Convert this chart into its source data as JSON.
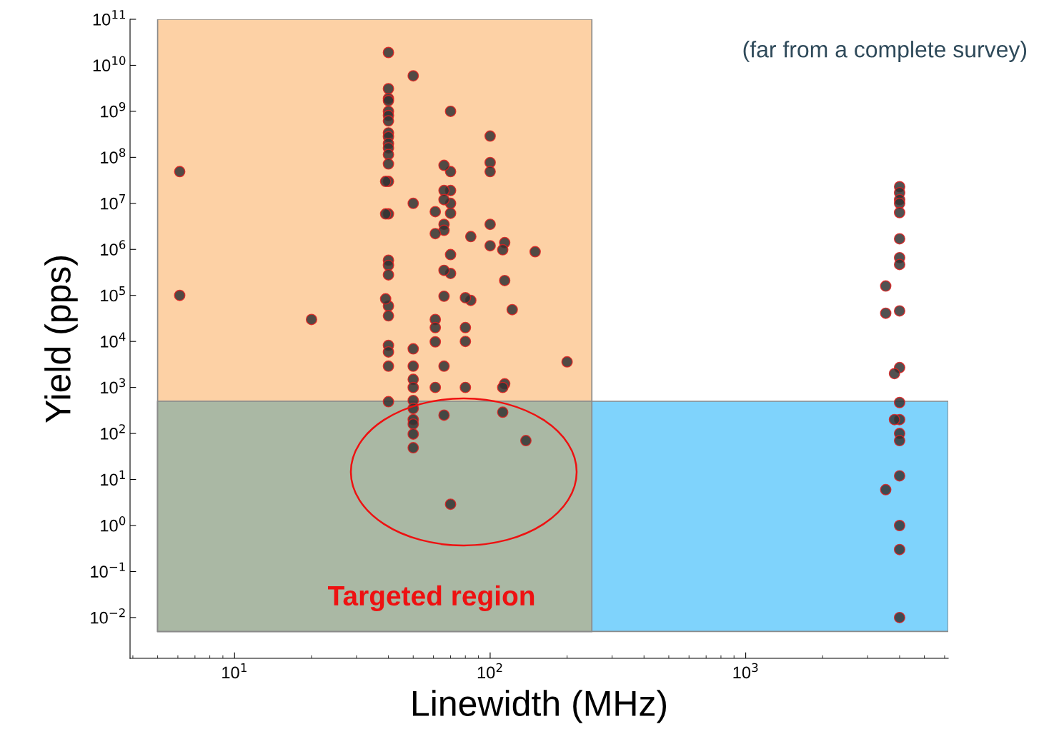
{
  "chart_data": {
    "type": "scatter",
    "xlabel": "Linewidth (MHz)",
    "ylabel": "Yield (pps)",
    "log": "xy",
    "grid": false,
    "legend": false,
    "marker": "circle",
    "xlim": [
      3.9,
      6200
    ],
    "ylim": [
      0.0013,
      100000000000.0
    ],
    "xticks": [
      {
        "value": 10,
        "label": "10$^{1}$"
      },
      {
        "value": 100,
        "label": "10$^{2}$"
      },
      {
        "value": 1000,
        "label": "10$^{3}$"
      }
    ],
    "yticks": [
      {
        "value": 0.01,
        "label": "10$^{−2}$"
      },
      {
        "value": 0.1,
        "label": "10$^{−1}$"
      },
      {
        "value": 1,
        "label": "10$^{0}$"
      },
      {
        "value": 10,
        "label": "10$^{1}$"
      },
      {
        "value": 100,
        "label": "10$^{2}$"
      },
      {
        "value": 1000,
        "label": "10$^{3}$"
      },
      {
        "value": 10000,
        "label": "10$^{4}$"
      },
      {
        "value": 100000,
        "label": "10$^{5}$"
      },
      {
        "value": 1000000,
        "label": "10$^{6}$"
      },
      {
        "value": 10000000,
        "label": "10$^{7}$"
      },
      {
        "value": 100000000,
        "label": "10$^{8}$"
      },
      {
        "value": 1000000000,
        "label": "10$^{9}$"
      },
      {
        "value": 10000000000,
        "label": "10$^{10}$"
      },
      {
        "value": 100000000000,
        "label": "10$^{11}$"
      }
    ],
    "bands": [
      {
        "axis": "x",
        "from": 5,
        "to": 250,
        "color": "#fdd1a5"
      },
      {
        "axis": "y",
        "from": 0.005,
        "to": 500,
        "color": "#7fd3fc"
      },
      {
        "axis": "x",
        "from": 5,
        "to": 250,
        "color": "#aab8a4"
      }
    ],
    "annotations": [
      "(far from a complete survey)",
      "Targeted region"
    ],
    "series": [
      {
        "color": "#333333",
        "x": [
          40,
          40,
          40,
          40,
          40,
          40,
          40,
          40,
          40,
          40,
          40,
          40,
          40,
          40,
          40,
          40,
          40,
          40,
          40,
          40,
          40,
          40,
          40,
          40,
          39,
          39,
          39,
          50,
          50,
          50,
          50,
          50,
          50,
          50,
          50,
          50,
          50,
          50,
          50,
          70,
          70,
          70,
          70,
          70,
          70,
          70,
          70,
          66,
          66,
          66,
          66,
          66,
          66,
          66,
          66,
          66,
          61,
          61,
          61,
          61,
          61,
          61,
          100,
          100,
          100,
          100,
          100,
          84,
          84,
          114,
          114,
          114,
          112,
          112,
          112,
          150,
          80,
          80,
          80,
          80,
          122,
          138,
          200,
          6.1,
          6.1,
          20,
          4000,
          4000,
          4000,
          4000,
          4000,
          4000,
          4000,
          4000,
          4000,
          4000,
          4000,
          4000,
          4000,
          4000,
          4000,
          4000,
          4000,
          4000,
          3530,
          3530,
          3530,
          3820,
          3820
        ],
        "values": [
          19000000000.0,
          3100000000.0,
          1900000000.0,
          1700000000.0,
          1000000000.0,
          810000000.0,
          620000000.0,
          340000000.0,
          280000000.0,
          200000000.0,
          160000000.0,
          115000000.0,
          72000000.0,
          30000000.0,
          5900000.0,
          580000.0,
          450000.0,
          280000.0,
          59000.0,
          36000.0,
          8200.0,
          5900.0,
          2900.0,
          490,
          30000000.0,
          5900000.0,
          84000.0,
          5900000000.0,
          10000000.0,
          6900.0,
          2900.0,
          1500.0,
          1000.0,
          520,
          350,
          200,
          160,
          97,
          49,
          1000000000.0,
          49000000.0,
          19000000.0,
          10000000.0,
          6100000.0,
          770000.0,
          300000.0,
          2.9,
          67000000.0,
          19000000.0,
          12000000.0,
          3500000.0,
          2600000.0,
          350000.0,
          96000.0,
          2900.0,
          250,
          6600000.0,
          2200000.0,
          30000.0,
          20000.0,
          9800.0,
          1000.0,
          290000000.0,
          77000000.0,
          49000000.0,
          3500000.0,
          1200000.0,
          1900000.0,
          78000.0,
          1400000.0,
          210000.0,
          1200.0,
          980000.0,
          1000.0,
          290,
          890000.0,
          89000.0,
          20000.0,
          10000.0,
          1000.0,
          49000.0,
          70,
          3600.0,
          49000000.0,
          100000.0,
          30000.0,
          23000000.0,
          17000000.0,
          12000000.0,
          10000000.0,
          6300000.0,
          1700000.0,
          660000.0,
          470000.0,
          46000.0,
          2700.0,
          470,
          200,
          100,
          70,
          12,
          1,
          0.3,
          0.01,
          160000.0,
          41000.0,
          6,
          2000.0,
          200
        ]
      }
    ]
  }
}
